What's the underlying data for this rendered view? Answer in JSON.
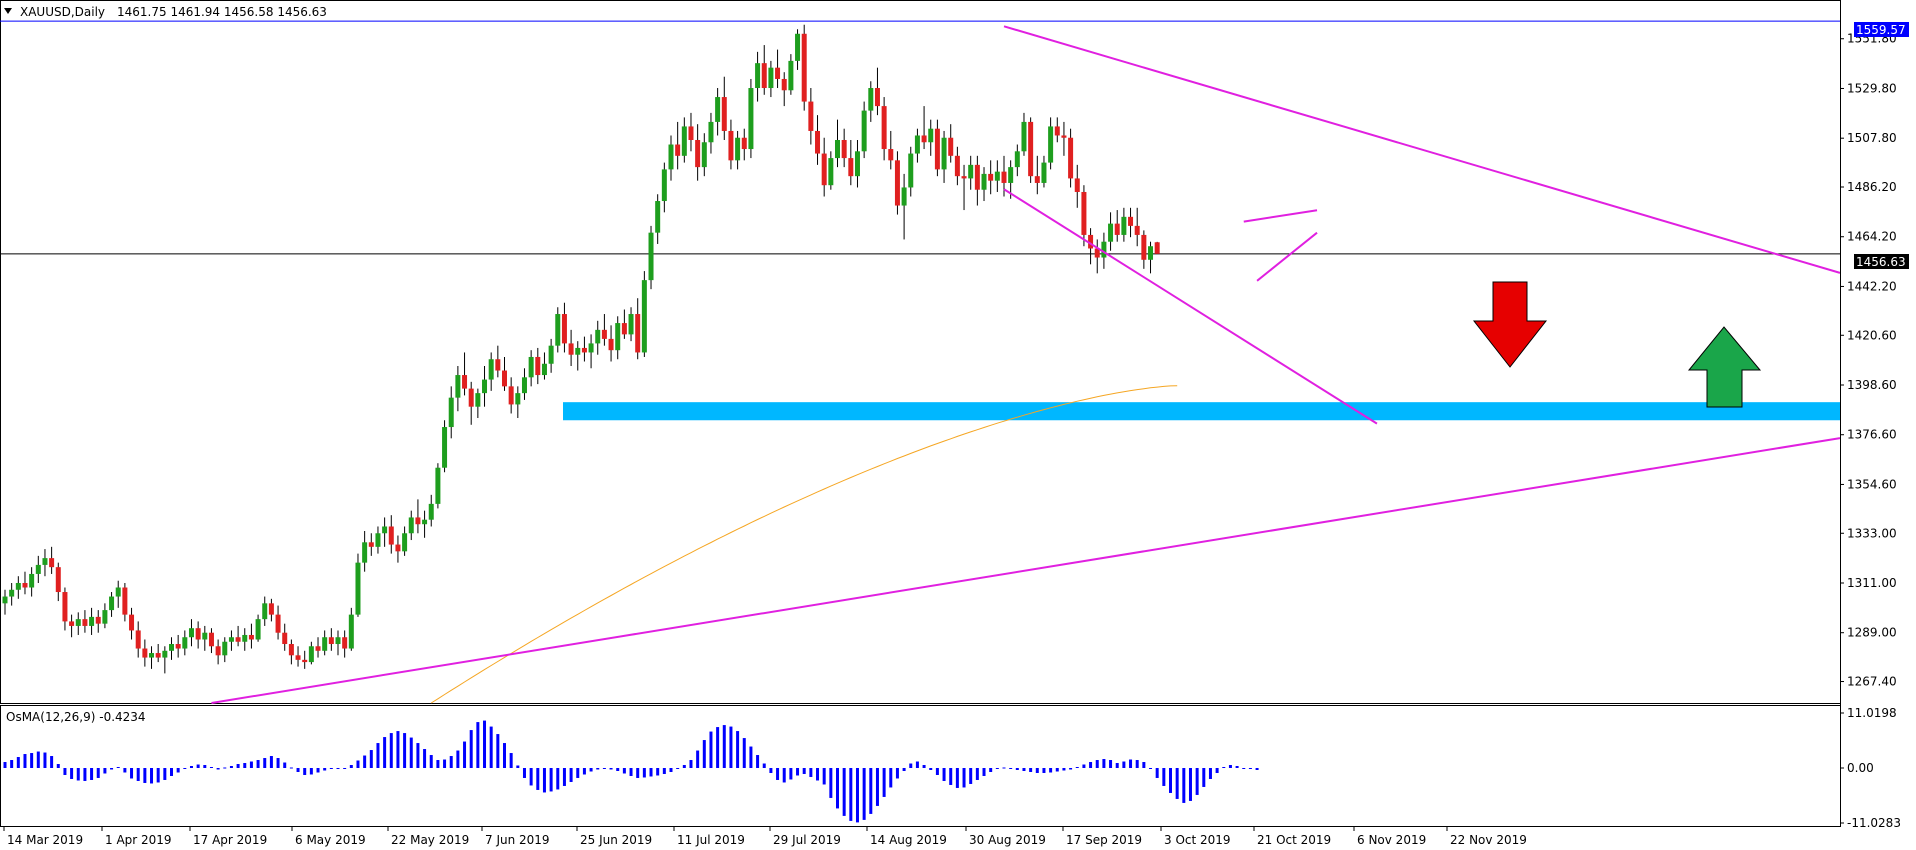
{
  "header": {
    "symbol": "XAUUSD,Daily",
    "ohlc": "1461.75 1461.94 1456.58 1456.63",
    "menu_icon": "triangle-down-icon"
  },
  "osma": {
    "label": "OsMA(12,26,9) -0.4234",
    "ticks": [
      "11.0198",
      "0.00",
      "-11.0283"
    ]
  },
  "colors": {
    "bull": "#1e9e1e",
    "bear": "#e02020",
    "wick": "#000000",
    "trendline": "#e020e0",
    "ma": "#f5a623",
    "zone": "#00b7ff",
    "resistance": "#0000ff",
    "histogram": "#0000ff",
    "down_arrow": "#e60000",
    "up_arrow": "#1aa64a"
  },
  "chart_data": {
    "type": "candlestick",
    "symbol": "XAUUSD",
    "timeframe": "Daily",
    "yticks": [
      "1551.80",
      "1529.80",
      "1507.80",
      "1486.20",
      "1464.20",
      "1442.20",
      "1420.60",
      "1398.60",
      "1376.60",
      "1354.60",
      "1333.00",
      "1311.00",
      "1289.00",
      "1267.40"
    ],
    "ylim": [
      1257.9,
      1568.5
    ],
    "xticks": [
      "14 Mar 2019",
      "1 Apr 2019",
      "17 Apr 2019",
      "6 May 2019",
      "22 May 2019",
      "7 Jun 2019",
      "25 Jun 2019",
      "11 Jul 2019",
      "29 Jul 2019",
      "14 Aug 2019",
      "30 Aug 2019",
      "17 Sep 2019",
      "3 Oct 2019",
      "21 Oct 2019",
      "6 Nov 2019",
      "22 Nov 2019"
    ],
    "price_lines": {
      "resistance_label": "1559.57",
      "resistance": 1559.57,
      "current_label": "1456.63",
      "current": 1456.63
    },
    "support_zone": {
      "from": 1383,
      "to": 1391
    },
    "candles": [
      [
        1302,
        1308,
        1297,
        1305
      ],
      [
        1305,
        1311,
        1301,
        1308
      ],
      [
        1308,
        1314,
        1304,
        1311
      ],
      [
        1311,
        1316,
        1306,
        1309
      ],
      [
        1309,
        1318,
        1305,
        1315
      ],
      [
        1315,
        1323,
        1311,
        1319
      ],
      [
        1319,
        1326,
        1314,
        1322
      ],
      [
        1322,
        1327,
        1315,
        1318
      ],
      [
        1318,
        1320,
        1303,
        1307
      ],
      [
        1307,
        1309,
        1290,
        1294
      ],
      [
        1294,
        1297,
        1287,
        1292
      ],
      [
        1292,
        1298,
        1288,
        1295
      ],
      [
        1295,
        1299,
        1289,
        1292
      ],
      [
        1292,
        1300,
        1288,
        1296
      ],
      [
        1296,
        1299,
        1289,
        1293
      ],
      [
        1293,
        1302,
        1291,
        1299
      ],
      [
        1299,
        1307,
        1296,
        1305
      ],
      [
        1305,
        1312,
        1300,
        1309
      ],
      [
        1309,
        1311,
        1294,
        1297
      ],
      [
        1297,
        1300,
        1286,
        1290
      ],
      [
        1290,
        1294,
        1278,
        1282
      ],
      [
        1282,
        1286,
        1274,
        1278
      ],
      [
        1278,
        1283,
        1273,
        1280
      ],
      [
        1280,
        1284,
        1276,
        1278
      ],
      [
        1278,
        1283,
        1271,
        1281
      ],
      [
        1281,
        1287,
        1277,
        1284
      ],
      [
        1284,
        1288,
        1278,
        1282
      ],
      [
        1282,
        1290,
        1279,
        1287
      ],
      [
        1287,
        1295,
        1283,
        1291
      ],
      [
        1291,
        1294,
        1282,
        1286
      ],
      [
        1286,
        1292,
        1281,
        1289
      ],
      [
        1289,
        1291,
        1280,
        1283
      ],
      [
        1283,
        1286,
        1275,
        1279
      ],
      [
        1279,
        1287,
        1276,
        1285
      ],
      [
        1285,
        1290,
        1281,
        1287
      ],
      [
        1287,
        1292,
        1283,
        1285
      ],
      [
        1285,
        1291,
        1281,
        1288
      ],
      [
        1288,
        1293,
        1282,
        1286
      ],
      [
        1286,
        1297,
        1285,
        1295
      ],
      [
        1295,
        1305,
        1292,
        1302
      ],
      [
        1302,
        1304,
        1294,
        1297
      ],
      [
        1297,
        1301,
        1286,
        1289
      ],
      [
        1289,
        1293,
        1281,
        1284
      ],
      [
        1284,
        1286,
        1275,
        1279
      ],
      [
        1279,
        1283,
        1274,
        1277
      ],
      [
        1277,
        1281,
        1273,
        1276
      ],
      [
        1276,
        1285,
        1275,
        1283
      ],
      [
        1283,
        1287,
        1278,
        1281
      ],
      [
        1281,
        1290,
        1279,
        1287
      ],
      [
        1287,
        1291,
        1281,
        1284
      ],
      [
        1284,
        1290,
        1279,
        1287
      ],
      [
        1287,
        1290,
        1278,
        1282
      ],
      [
        1282,
        1300,
        1281,
        1297
      ],
      [
        1297,
        1324,
        1296,
        1320
      ],
      [
        1320,
        1334,
        1316,
        1329
      ],
      [
        1329,
        1333,
        1323,
        1327
      ],
      [
        1327,
        1336,
        1324,
        1333
      ],
      [
        1333,
        1340,
        1327,
        1336
      ],
      [
        1336,
        1341,
        1324,
        1328
      ],
      [
        1328,
        1332,
        1320,
        1325
      ],
      [
        1325,
        1336,
        1323,
        1333
      ],
      [
        1333,
        1343,
        1330,
        1340
      ],
      [
        1340,
        1348,
        1333,
        1337
      ],
      [
        1337,
        1343,
        1331,
        1339
      ],
      [
        1339,
        1350,
        1336,
        1346
      ],
      [
        1346,
        1364,
        1344,
        1362
      ],
      [
        1362,
        1383,
        1360,
        1380
      ],
      [
        1380,
        1398,
        1375,
        1393
      ],
      [
        1393,
        1407,
        1387,
        1403
      ],
      [
        1403,
        1413,
        1394,
        1397
      ],
      [
        1397,
        1400,
        1381,
        1389
      ],
      [
        1389,
        1397,
        1384,
        1395
      ],
      [
        1395,
        1407,
        1389,
        1401
      ],
      [
        1401,
        1413,
        1396,
        1410
      ],
      [
        1410,
        1416,
        1402,
        1405
      ],
      [
        1405,
        1411,
        1396,
        1398
      ],
      [
        1398,
        1402,
        1386,
        1390
      ],
      [
        1390,
        1398,
        1384,
        1395
      ],
      [
        1395,
        1406,
        1392,
        1402
      ],
      [
        1402,
        1414,
        1398,
        1411
      ],
      [
        1411,
        1415,
        1399,
        1403
      ],
      [
        1403,
        1413,
        1401,
        1408
      ],
      [
        1408,
        1419,
        1404,
        1416
      ],
      [
        1416,
        1433,
        1413,
        1430
      ],
      [
        1430,
        1435,
        1413,
        1417
      ],
      [
        1417,
        1423,
        1407,
        1412
      ],
      [
        1412,
        1418,
        1405,
        1415
      ],
      [
        1415,
        1420,
        1409,
        1413
      ],
      [
        1413,
        1421,
        1406,
        1417
      ],
      [
        1417,
        1427,
        1412,
        1423
      ],
      [
        1423,
        1430,
        1416,
        1419
      ],
      [
        1419,
        1425,
        1409,
        1414
      ],
      [
        1414,
        1429,
        1410,
        1426
      ],
      [
        1426,
        1432,
        1419,
        1421
      ],
      [
        1421,
        1433,
        1418,
        1430
      ],
      [
        1430,
        1437,
        1410,
        1413
      ],
      [
        1413,
        1449,
        1411,
        1445
      ],
      [
        1445,
        1469,
        1441,
        1466
      ],
      [
        1466,
        1483,
        1461,
        1480
      ],
      [
        1480,
        1497,
        1475,
        1494
      ],
      [
        1494,
        1509,
        1489,
        1505
      ],
      [
        1505,
        1515,
        1494,
        1500
      ],
      [
        1500,
        1517,
        1497,
        1513
      ],
      [
        1513,
        1519,
        1502,
        1507
      ],
      [
        1507,
        1514,
        1489,
        1495
      ],
      [
        1495,
        1510,
        1491,
        1506
      ],
      [
        1506,
        1519,
        1501,
        1515
      ],
      [
        1515,
        1530,
        1509,
        1526
      ],
      [
        1526,
        1535,
        1507,
        1511
      ],
      [
        1511,
        1516,
        1494,
        1498
      ],
      [
        1498,
        1511,
        1494,
        1508
      ],
      [
        1508,
        1512,
        1498,
        1503
      ],
      [
        1503,
        1534,
        1499,
        1530
      ],
      [
        1530,
        1546,
        1524,
        1541
      ],
      [
        1541,
        1549,
        1527,
        1530
      ],
      [
        1530,
        1542,
        1526,
        1539
      ],
      [
        1539,
        1547,
        1530,
        1534
      ],
      [
        1534,
        1537,
        1522,
        1529
      ],
      [
        1529,
        1545,
        1527,
        1542
      ],
      [
        1542,
        1556,
        1538,
        1554
      ],
      [
        1554,
        1558,
        1520,
        1524
      ],
      [
        1524,
        1530,
        1505,
        1511
      ],
      [
        1511,
        1518,
        1496,
        1501
      ],
      [
        1501,
        1508,
        1482,
        1487
      ],
      [
        1487,
        1502,
        1485,
        1499
      ],
      [
        1499,
        1516,
        1495,
        1507
      ],
      [
        1507,
        1512,
        1495,
        1499
      ],
      [
        1499,
        1507,
        1487,
        1491
      ],
      [
        1491,
        1507,
        1486,
        1502
      ],
      [
        1502,
        1524,
        1499,
        1520
      ],
      [
        1520,
        1533,
        1515,
        1530
      ],
      [
        1530,
        1539,
        1518,
        1522
      ],
      [
        1522,
        1526,
        1498,
        1503
      ],
      [
        1503,
        1511,
        1494,
        1498
      ],
      [
        1498,
        1502,
        1474,
        1478
      ],
      [
        1478,
        1492,
        1463,
        1486
      ],
      [
        1486,
        1504,
        1482,
        1501
      ],
      [
        1501,
        1512,
        1497,
        1509
      ],
      [
        1509,
        1522,
        1503,
        1506
      ],
      [
        1506,
        1516,
        1500,
        1512
      ],
      [
        1512,
        1516,
        1491,
        1494
      ],
      [
        1494,
        1511,
        1488,
        1508
      ],
      [
        1508,
        1514,
        1497,
        1500
      ],
      [
        1500,
        1504,
        1487,
        1491
      ],
      [
        1491,
        1496,
        1476,
        1490
      ],
      [
        1490,
        1500,
        1485,
        1496
      ],
      [
        1496,
        1500,
        1478,
        1485
      ],
      [
        1485,
        1495,
        1480,
        1492
      ],
      [
        1492,
        1498,
        1483,
        1489
      ],
      [
        1489,
        1498,
        1484,
        1493
      ],
      [
        1493,
        1500,
        1482,
        1488
      ],
      [
        1488,
        1498,
        1481,
        1495
      ],
      [
        1495,
        1505,
        1491,
        1502
      ],
      [
        1502,
        1519,
        1500,
        1515
      ],
      [
        1515,
        1517,
        1488,
        1491
      ],
      [
        1491,
        1500,
        1483,
        1488
      ],
      [
        1488,
        1500,
        1486,
        1497
      ],
      [
        1497,
        1517,
        1494,
        1513
      ],
      [
        1513,
        1517,
        1506,
        1509
      ],
      [
        1509,
        1515,
        1500,
        1508
      ],
      [
        1508,
        1512,
        1486,
        1490
      ],
      [
        1490,
        1496,
        1477,
        1484
      ],
      [
        1484,
        1487,
        1460,
        1465
      ],
      [
        1465,
        1468,
        1452,
        1459
      ],
      [
        1459,
        1463,
        1448,
        1455
      ],
      [
        1455,
        1466,
        1450,
        1462
      ],
      [
        1462,
        1475,
        1458,
        1470
      ],
      [
        1470,
        1476,
        1462,
        1465
      ],
      [
        1465,
        1477,
        1462,
        1473
      ],
      [
        1473,
        1477,
        1464,
        1469
      ],
      [
        1469,
        1477,
        1460,
        1465
      ],
      [
        1465,
        1467,
        1450,
        1454
      ],
      [
        1454,
        1462,
        1448,
        1460
      ],
      [
        1461.75,
        1461.94,
        1456.58,
        1456.63
      ]
    ],
    "moving_average": {
      "from_index": 64,
      "start": 1257.9,
      "end": 1398.3
    },
    "trendlines": [
      {
        "name": "descending-resistance",
        "from": [
          150,
          1557.3
        ],
        "to": [
          356,
          1448.2
        ]
      },
      {
        "name": "descending-channel-bottom",
        "from": [
          150,
          1485.2
        ],
        "to": [
          206,
          1381.5
        ]
      },
      {
        "name": "ascending-support",
        "from": [
          31,
          1257.9
        ],
        "to": [
          356,
          1375.1
        ]
      },
      {
        "name": "pennant-top",
        "from": [
          186,
          1470.9
        ],
        "to": [
          197,
          1475.9
        ]
      },
      {
        "name": "pennant-bottom",
        "from": [
          188,
          1444.7
        ],
        "to": [
          197,
          1466.0
        ]
      }
    ],
    "osma_values": [
      1.2,
      1.6,
      2.2,
      2.8,
      3.0,
      3.3,
      3.1,
      2.4,
      0.8,
      -1.4,
      -2.2,
      -2.5,
      -2.6,
      -2.4,
      -2.0,
      -1.1,
      -0.3,
      0.2,
      -0.9,
      -2.1,
      -2.6,
      -3.0,
      -3.1,
      -2.9,
      -2.4,
      -1.6,
      -0.9,
      -0.2,
      0.4,
      0.7,
      0.6,
      0.2,
      -0.3,
      0.1,
      0.4,
      0.8,
      1.0,
      1.3,
      1.6,
      2.0,
      2.4,
      2.0,
      1.1,
      0.1,
      -0.8,
      -1.4,
      -1.3,
      -0.9,
      -0.5,
      -0.2,
      -0.1,
      0.0,
      0.6,
      1.5,
      2.5,
      3.6,
      5.0,
      6.2,
      7.0,
      7.4,
      7.0,
      6.1,
      5.0,
      3.8,
      2.6,
      1.6,
      1.7,
      2.4,
      3.5,
      5.3,
      7.6,
      9.2,
      9.5,
      8.3,
      6.8,
      5.0,
      3.0,
      0.5,
      -2.0,
      -3.5,
      -4.4,
      -4.9,
      -4.7,
      -4.3,
      -3.6,
      -2.8,
      -2.0,
      -1.3,
      -0.7,
      -0.3,
      0.0,
      -0.3,
      -0.6,
      -1.1,
      -1.6,
      -2.0,
      -1.9,
      -1.7,
      -1.5,
      -1.2,
      -0.8,
      -0.2,
      0.6,
      1.6,
      3.5,
      5.6,
      7.3,
      8.2,
      8.6,
      8.3,
      7.4,
      6.0,
      4.3,
      2.6,
      0.9,
      -1.0,
      -2.4,
      -2.9,
      -2.3,
      -1.5,
      -1.2,
      -1.8,
      -2.5,
      -3.3,
      -6.0,
      -8.1,
      -9.6,
      -10.6,
      -10.9,
      -10.4,
      -9.2,
      -7.6,
      -5.8,
      -3.9,
      -2.1,
      -0.6,
      0.9,
      1.3,
      0.6,
      -0.4,
      -1.4,
      -2.6,
      -3.4,
      -4.0,
      -3.9,
      -3.2,
      -2.4,
      -1.6,
      -0.8,
      -0.2,
      0.1,
      -0.2,
      -0.4,
      -0.6,
      -0.8,
      -1.0,
      -1.0,
      -0.9,
      -0.7,
      -0.5,
      -0.3,
      0.2,
      0.7,
      1.2,
      1.6,
      1.8,
      1.6,
      1.0,
      1.3,
      1.7,
      1.6,
      1.2,
      -0.2,
      -2.0,
      -3.6,
      -5.0,
      -6.2,
      -7.0,
      -6.6,
      -5.4,
      -3.8,
      -2.2,
      -1.0,
      0.2,
      0.6,
      0.4,
      0.0,
      -0.2,
      -0.4
    ]
  }
}
